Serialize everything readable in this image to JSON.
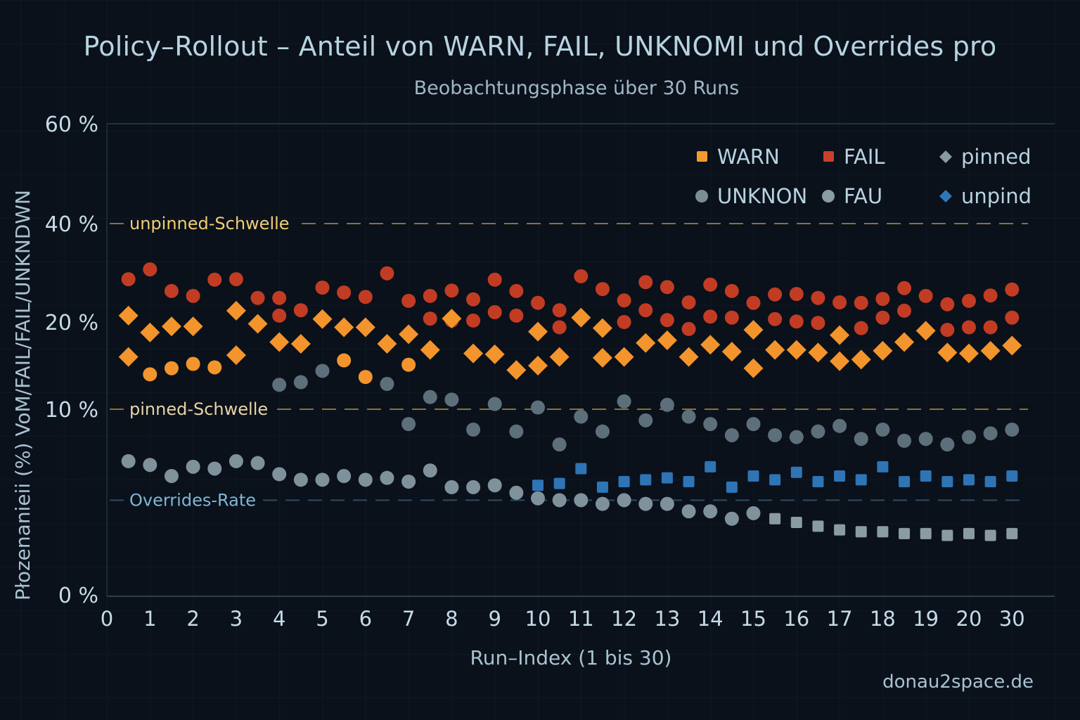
{
  "chart_data": {
    "type": "scatter",
    "title": "Policy–Rollout – Anteil von WARN, FAIL, UNKNOMI und Overrides pro",
    "subtitle": "Beobachtungsphase über 30 Runs",
    "xlabel": "Run–Index (1 bis 30)",
    "ylabel": "Płozenanieii (%) VoM/FAIL/FAIL/UNKNDWN",
    "watermark": "donau2space.de",
    "x_ticks": [
      "0",
      "1",
      "2",
      "3",
      "4",
      "5",
      "6",
      "7",
      "8",
      "9",
      "10",
      "11",
      "12",
      "13",
      "14",
      "15",
      "16",
      "17",
      "18",
      "19",
      "20",
      "30"
    ],
    "y_ticks": [
      {
        "value": 0,
        "label": "0 %"
      },
      {
        "value": 10,
        "label": "10 %"
      },
      {
        "value": 20,
        "label": "20 %"
      },
      {
        "value": 40,
        "label": "40 %"
      },
      {
        "value": 60,
        "label": "60 %"
      }
    ],
    "ylim": [
      0,
      60
    ],
    "xlim": [
      0,
      21
    ],
    "grid": true,
    "legend_position": "top-right",
    "legend": [
      {
        "label": "WARN",
        "marker": "square",
        "color": "#f39a2c"
      },
      {
        "label": "FAIL",
        "marker": "square",
        "color": "#c9412a"
      },
      {
        "label": "pinned",
        "marker": "diamond",
        "color": "#8a9aa4"
      },
      {
        "label": "UNKNON",
        "marker": "circle",
        "color": "#7b8d97"
      },
      {
        "label": "FAU",
        "marker": "circle",
        "color": "#8a9ba4"
      },
      {
        "label": "unpind",
        "marker": "diamond",
        "color": "#2f78b8"
      }
    ],
    "reference_lines": [
      {
        "label": "unpinned-Schwelle",
        "value": 40,
        "color": "#8a7238",
        "text_color": "#f2cd72"
      },
      {
        "label": "pinned-Schwelle",
        "value": 10,
        "color": "#8a7238",
        "text_color": "#e8d3a6"
      },
      {
        "label": "Overrides-Rate",
        "value": 5.1,
        "color": "#2e4a66",
        "text_color": "#7fb6d6"
      }
    ],
    "series": [
      {
        "name": "FAIL (upper)",
        "marker": "circle",
        "color": "#c23c24",
        "x": [
          0.5,
          1,
          1.5,
          2,
          2.5,
          3,
          3.5,
          4,
          4.5,
          5,
          5.5,
          6,
          6.5,
          7,
          7.5,
          8,
          8.5,
          9,
          9.5,
          10,
          10.5,
          11,
          11.5,
          12,
          12.5,
          13,
          13.5,
          14,
          14.5,
          15,
          15.5,
          16,
          16.5,
          17,
          17.5,
          18,
          18.5,
          19,
          19.5,
          20,
          20.5,
          21
        ],
        "y": [
          28.7,
          30.7,
          26.3,
          25.3,
          28.6,
          28.7,
          24.9,
          24.9,
          22.4,
          27.0,
          26.0,
          25.1,
          29.9,
          24.3,
          25.3,
          26.4,
          24.6,
          28.6,
          26.3,
          23.9,
          22.4,
          29.3,
          26.7,
          24.4,
          28.1,
          27.1,
          24.0,
          27.6,
          26.3,
          23.9,
          25.6,
          25.7,
          24.9,
          24.0,
          23.9,
          24.7,
          26.9,
          25.3,
          23.6,
          24.3,
          25.4,
          26.6
        ]
      },
      {
        "name": "FAIL (lower)",
        "marker": "circle",
        "color": "#c23c24",
        "x": [
          4,
          7.5,
          8,
          8.5,
          9,
          9.5,
          10.5,
          11,
          12,
          12.5,
          13,
          13.5,
          14,
          14.5,
          15.5,
          16,
          16.5,
          17.5,
          18,
          18.5,
          19.5,
          20,
          20.5,
          21
        ],
        "y": [
          21.3,
          20.7,
          20.3,
          20.3,
          22.0,
          21.3,
          19.4,
          20.9,
          20.0,
          22.4,
          20.4,
          19.2,
          21.1,
          20.9,
          20.6,
          20.1,
          19.9,
          19.3,
          20.9,
          22.3,
          19.1,
          19.4,
          19.4,
          20.9
        ]
      },
      {
        "name": "WARN (diamond)",
        "marker": "diamond",
        "color": "#f3942c",
        "x": [
          0.5,
          1,
          1.5,
          2,
          3,
          3.5,
          4,
          4.5,
          5,
          5.5,
          6,
          6.5,
          7,
          7.5,
          8,
          8.5,
          9,
          9.5,
          10,
          10.5,
          11,
          11.5,
          12,
          12.5,
          13,
          13.5,
          14,
          14.5,
          15,
          15.5,
          16,
          16.5,
          17,
          17.5,
          18,
          18.5,
          19,
          19.5,
          20,
          20.5,
          21
        ],
        "y": [
          21.3,
          18.8,
          19.5,
          19.5,
          22.3,
          19.8,
          17.7,
          17.5,
          20.6,
          19.4,
          19.4,
          17.5,
          18.6,
          16.8,
          20.7,
          16.4,
          16.3,
          14.5,
          18.9,
          16.0,
          20.9,
          19.3,
          16.0,
          17.6,
          17.9,
          16.0,
          17.4,
          16.6,
          19.1,
          16.8,
          16.8,
          16.5,
          18.5,
          15.7,
          16.7,
          17.7,
          19.0,
          16.5,
          16.4,
          16.7,
          17.3
        ]
      },
      {
        "name": "WARN (diamond, lower)",
        "marker": "diamond",
        "color": "#f3942c",
        "x": [
          0.5,
          3,
          15,
          10,
          11.5,
          17
        ],
        "y": [
          16.0,
          16.2,
          14.7,
          15.0,
          15.9,
          15.5
        ]
      },
      {
        "name": "WARN (circle)",
        "marker": "circle",
        "color": "#f3942c",
        "x": [
          1,
          1.5,
          2,
          2.5,
          5.5,
          6,
          7
        ],
        "y": [
          14.0,
          14.7,
          15.2,
          14.8,
          15.6,
          13.7,
          15.1
        ]
      },
      {
        "name": "UNKNON",
        "marker": "circle",
        "color": "#5d6f7a",
        "x": [
          4,
          4.5,
          5,
          6.5,
          7,
          7.5,
          8,
          8.5,
          9,
          9.5,
          10,
          10.5,
          11,
          11.5,
          12,
          12.5,
          13,
          13.5,
          14,
          14.5,
          15,
          15.5,
          16,
          16.5,
          17,
          17.5,
          18,
          18.5,
          19,
          19.5,
          20,
          20.5,
          21
        ],
        "y": [
          12.8,
          13.1,
          14.4,
          12.9,
          9.2,
          11.4,
          11.1,
          8.9,
          10.6,
          8.8,
          10.2,
          8.1,
          9.6,
          8.8,
          10.9,
          9.4,
          10.5,
          9.6,
          9.2,
          8.6,
          9.2,
          8.6,
          8.5,
          8.8,
          9.1,
          8.4,
          8.9,
          8.3,
          8.4,
          8.1,
          8.5,
          8.7,
          8.9
        ]
      },
      {
        "name": "FAU",
        "marker": "circle",
        "color": "#7f929c",
        "x": [
          0.5,
          1,
          1.5,
          2,
          2.5,
          3,
          3.5,
          4,
          4.5,
          5,
          5.5,
          6,
          6.5,
          7,
          7.5,
          8,
          8.5,
          9,
          9.5,
          10,
          10.5,
          11,
          11.5,
          12,
          12.5,
          13,
          13.5,
          14,
          14.5,
          15
        ],
        "y": [
          7.2,
          7.0,
          6.4,
          6.9,
          6.8,
          7.2,
          7.1,
          6.5,
          6.2,
          6.2,
          6.4,
          6.2,
          6.3,
          6.1,
          6.7,
          5.8,
          5.8,
          5.9,
          5.5,
          5.2,
          5.1,
          5.1,
          4.9,
          5.1,
          4.9,
          4.9,
          4.5,
          4.5,
          4.1,
          4.4
        ]
      },
      {
        "name": "pinned",
        "marker": "square",
        "color": "#8a9ba4",
        "x": [
          15.5,
          16,
          16.5,
          17,
          17.5,
          18,
          18.5,
          19,
          19.5,
          20,
          20.5,
          21
        ],
        "y": [
          4.1,
          3.9,
          3.7,
          3.5,
          3.4,
          3.4,
          3.3,
          3.3,
          3.2,
          3.3,
          3.2,
          3.3
        ]
      },
      {
        "name": "unpind",
        "marker": "square",
        "color": "#2f74b5",
        "x": [
          10,
          10.5,
          11,
          11.5,
          12,
          12.5,
          13,
          13.5,
          14,
          14.5,
          15,
          15.5,
          16,
          16.5,
          17,
          17.5,
          18,
          18.5,
          19,
          19.5,
          20,
          20.5,
          21
        ],
        "y": [
          5.9,
          6.0,
          6.8,
          5.8,
          6.1,
          6.2,
          6.3,
          6.1,
          6.9,
          5.8,
          6.4,
          6.2,
          6.6,
          6.1,
          6.4,
          6.2,
          6.9,
          6.1,
          6.4,
          6.1,
          6.2,
          6.1,
          6.4
        ]
      }
    ]
  }
}
